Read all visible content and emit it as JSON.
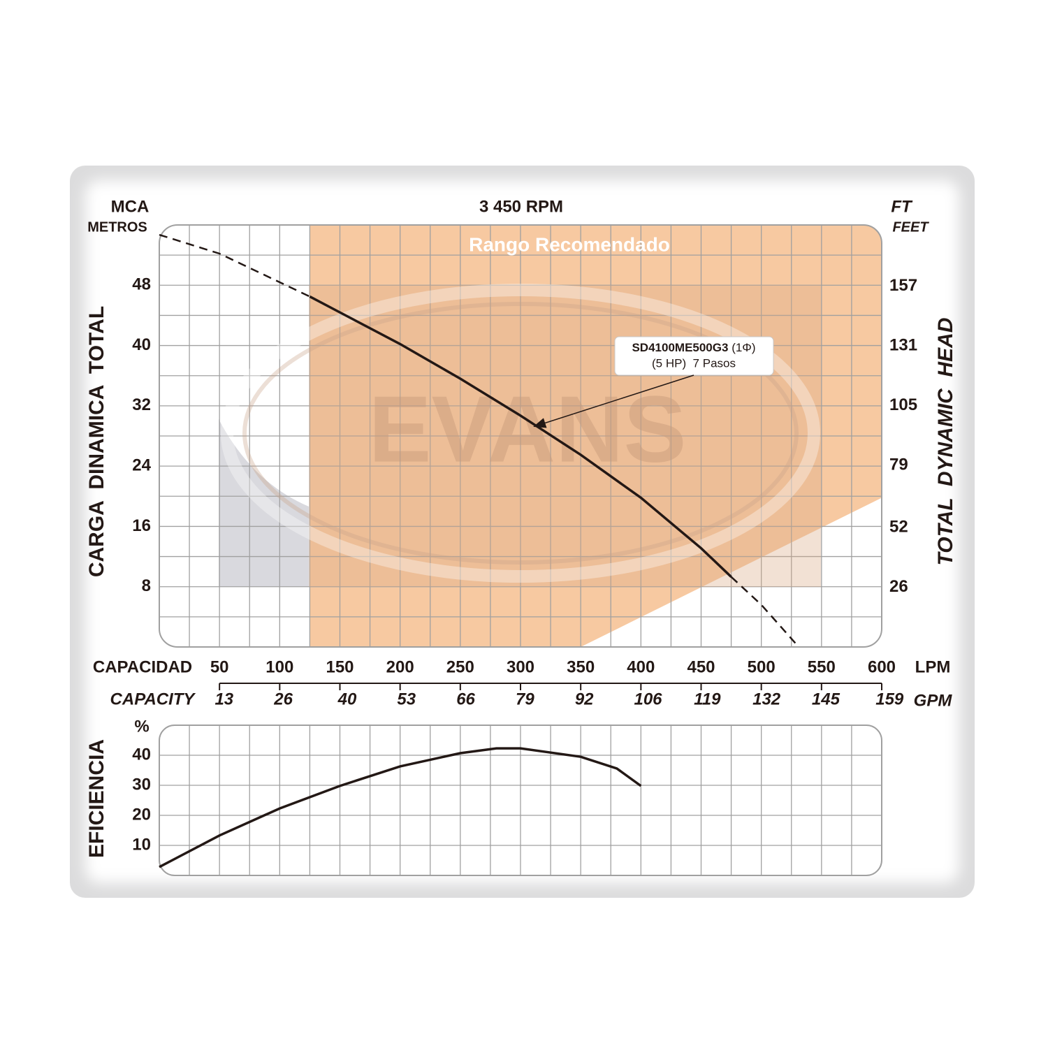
{
  "chart_data": [
    {
      "type": "line",
      "title": "3 450 RPM",
      "y_unit": "MCA",
      "y_unit_sub": "METROS",
      "y_label": "CARGA  DINAMICA  TOTAL",
      "y2_unit": "FT",
      "y2_unit_sub": "FEET",
      "y2_label": "TOTAL  DYNAMIC  HEAD",
      "x_label": "CAPACIDAD",
      "x_unit": "LPM",
      "x2_label": "CAPACITY",
      "x2_unit": "GPM",
      "xlim": [
        0,
        600
      ],
      "xticks": [
        50,
        100,
        150,
        200,
        250,
        300,
        350,
        400,
        450,
        500,
        550,
        600
      ],
      "x2lim": [
        0,
        158.5
      ],
      "x2ticks": [
        13,
        26,
        40,
        53,
        66,
        79,
        92,
        106,
        119,
        132,
        145,
        159
      ],
      "ylim": [
        0,
        56
      ],
      "yticks": [
        8,
        16,
        24,
        32,
        40,
        48
      ],
      "y2lim": [
        0,
        183.7
      ],
      "y2ticks": [
        26,
        52,
        79,
        105,
        131,
        157
      ],
      "x_grid": [
        25,
        50,
        75,
        100,
        125,
        150,
        175,
        200,
        225,
        250,
        275,
        300,
        325,
        350,
        375,
        400,
        425,
        450,
        475,
        500,
        525,
        550,
        575
      ],
      "y_grid": [
        4,
        8,
        12,
        16,
        20,
        24,
        28,
        32,
        36,
        40,
        44,
        48,
        52
      ],
      "recommended_region": {
        "label": "Rango Recomendado",
        "color": "#f7c9a1",
        "x": [
          125,
          600,
          600,
          350,
          125
        ],
        "y": [
          56,
          56,
          19.8,
          0,
          0
        ]
      },
      "watermark": "EVANS",
      "annotation": {
        "model": "SD4100ME500G3",
        "phase": "(1Φ)",
        "detail": "(5 HP)  7 Pasos"
      },
      "series": [
        {
          "color": "#231815",
          "dash": true,
          "x": [
            0,
            50,
            100,
            125
          ],
          "values": [
            54.7,
            52.2,
            48.4,
            46.5
          ]
        },
        {
          "color": "#231815",
          "dash": false,
          "x": [
            125,
            150,
            200,
            250,
            300,
            350,
            400,
            450,
            475
          ],
          "values": [
            46.5,
            44.4,
            40.2,
            35.6,
            30.7,
            25.5,
            19.8,
            13.1,
            9.3
          ]
        },
        {
          "color": "#231815",
          "dash": true,
          "x": [
            475,
            500,
            530
          ],
          "values": [
            9.3,
            5.6,
            0.2
          ]
        }
      ]
    },
    {
      "type": "line",
      "y_label": "EFICIENCIA",
      "y_unit": "%",
      "xlim": [
        0,
        600
      ],
      "x_grid": [
        25,
        50,
        75,
        100,
        125,
        150,
        175,
        200,
        225,
        250,
        275,
        300,
        325,
        350,
        375,
        400,
        425,
        450,
        475,
        500,
        525,
        550,
        575
      ],
      "ylim": [
        0,
        50
      ],
      "yticks": [
        10,
        20,
        30,
        40
      ],
      "series": [
        {
          "color": "#231815",
          "x": [
            0,
            50,
            100,
            150,
            200,
            250,
            280,
            300,
            350,
            380,
            400
          ],
          "values": [
            2.8,
            13.3,
            22.3,
            29.8,
            36.3,
            40.7,
            42.3,
            42.3,
            39.5,
            35.6,
            29.8
          ]
        }
      ]
    }
  ]
}
